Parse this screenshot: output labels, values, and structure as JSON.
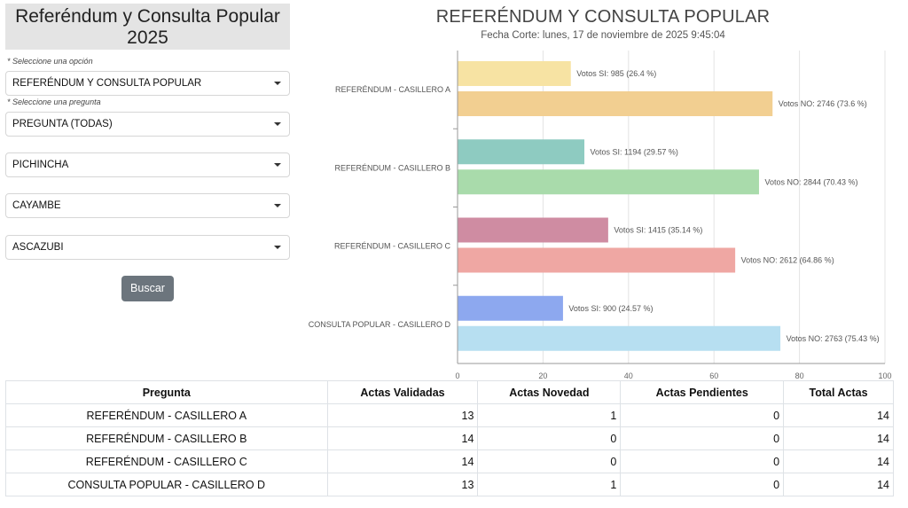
{
  "sidebar": {
    "title": "Referéndum y Consulta Popular 2025",
    "hint_option": "* Seleccione una opción",
    "hint_question": "* Seleccione una pregunta",
    "select_option": "REFERÉNDUM Y CONSULTA POPULAR",
    "select_question": "PREGUNTA (TODAS)",
    "select_province": "PICHINCHA",
    "select_canton": "CAYAMBE",
    "select_parish": "ASCAZUBI",
    "search_label": "Buscar"
  },
  "chart_header": {
    "title": "REFERÉNDUM Y CONSULTA POPULAR",
    "subtitle": "Fecha Corte: lunes, 17 de noviembre de 2025 9:45:04"
  },
  "chart_data": {
    "type": "bar",
    "orientation": "horizontal",
    "categories": [
      "REFERÉNDUM - CASILLERO A",
      "REFERÉNDUM - CASILLERO B",
      "REFERÉNDUM - CASILLERO C",
      "CONSULTA POPULAR - CASILLERO D"
    ],
    "xlim": [
      0,
      100
    ],
    "ticks": [
      0,
      20,
      40,
      60,
      80,
      100
    ],
    "grid": true,
    "bars": [
      {
        "category": 0,
        "value": 26.4,
        "label": "Votos SI: 985 (26.4 %)",
        "color": "#f7e3a3"
      },
      {
        "category": 0,
        "value": 73.6,
        "label": "Votos NO: 2746 (73.6 %)",
        "color": "#f2cf91"
      },
      {
        "category": 1,
        "value": 29.57,
        "label": "Votos SI: 1194 (29.57 %)",
        "color": "#8ecbc1"
      },
      {
        "category": 1,
        "value": 70.43,
        "label": "Votos NO: 2844 (70.43 %)",
        "color": "#a9dbab"
      },
      {
        "category": 2,
        "value": 35.14,
        "label": "Votos SI: 1415 (35.14 %)",
        "color": "#cf8ca2"
      },
      {
        "category": 2,
        "value": 64.86,
        "label": "Votos NO: 2612 (64.86 %)",
        "color": "#efa7a3"
      },
      {
        "category": 3,
        "value": 24.57,
        "label": "Votos SI: 900 (24.57 %)",
        "color": "#8da8ef"
      },
      {
        "category": 3,
        "value": 75.43,
        "label": "Votos NO: 2763 (75.43 %)",
        "color": "#b7dff1"
      }
    ]
  },
  "table": {
    "headers": [
      "Pregunta",
      "Actas Validadas",
      "Actas Novedad",
      "Actas Pendientes",
      "Total Actas"
    ],
    "rows": [
      [
        "REFERÉNDUM - CASILLERO A",
        "13",
        "1",
        "0",
        "14"
      ],
      [
        "REFERÉNDUM - CASILLERO B",
        "14",
        "0",
        "0",
        "14"
      ],
      [
        "REFERÉNDUM - CASILLERO C",
        "14",
        "0",
        "0",
        "14"
      ],
      [
        "CONSULTA POPULAR - CASILLERO D",
        "13",
        "1",
        "0",
        "14"
      ]
    ]
  }
}
